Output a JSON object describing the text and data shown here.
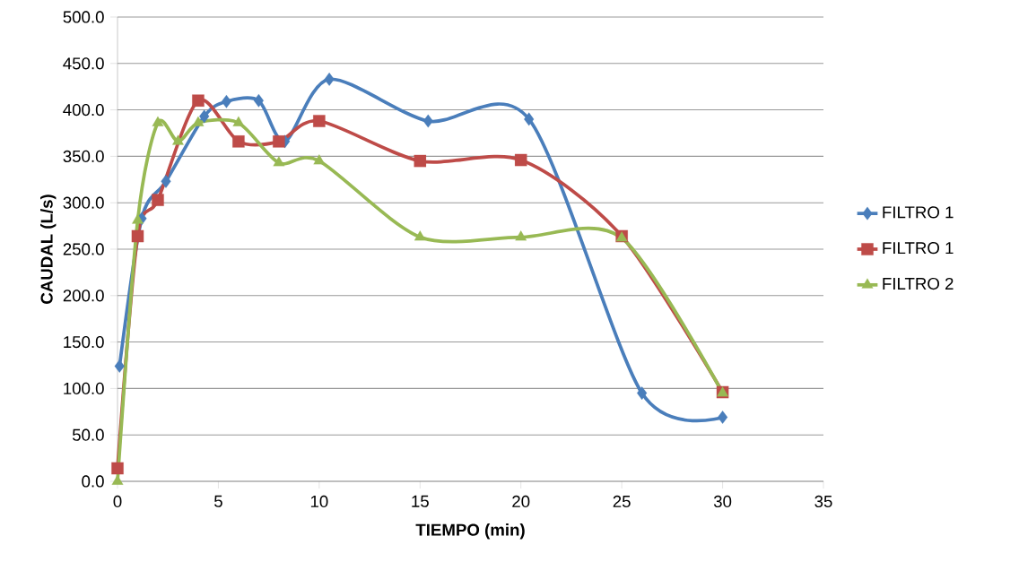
{
  "chart_data": {
    "type": "line",
    "xlabel": "TIEMPO (min)",
    "ylabel": "CAUDAL (L/s)",
    "xlim": [
      0,
      35
    ],
    "xticks": [
      0,
      5,
      10,
      15,
      20,
      25,
      30,
      35
    ],
    "ylim": [
      0,
      500
    ],
    "yticks": [
      {
        "value": 0,
        "label": "0.0"
      },
      {
        "value": 50,
        "label": "50.0"
      },
      {
        "value": 100,
        "label": "100.0"
      },
      {
        "value": 150,
        "label": "150.0"
      },
      {
        "value": 200,
        "label": "200.0"
      },
      {
        "value": 250,
        "label": "250.0"
      },
      {
        "value": 300,
        "label": "300.0"
      },
      {
        "value": 350,
        "label": "350.0"
      },
      {
        "value": 400,
        "label": "400.0"
      },
      {
        "value": 450,
        "label": "450.0"
      },
      {
        "value": 500,
        "label": "500.0"
      }
    ],
    "grid": "y",
    "legend": "right",
    "series": [
      {
        "name": "FILTRO 1",
        "color": "#4a7ebb",
        "marker": "diamond",
        "x": [
          0.1,
          1.2,
          2.4,
          4.3,
          5.4,
          7.0,
          8.3,
          10.5,
          15.4,
          20.4,
          26.0,
          30.0
        ],
        "values": [
          124,
          283,
          323,
          393,
          409,
          410,
          366,
          433,
          388,
          390,
          95,
          69
        ]
      },
      {
        "name": "FILTRO 1",
        "color": "#be4b48",
        "marker": "square",
        "x": [
          0,
          1,
          2,
          4,
          6,
          8,
          10,
          15,
          20,
          25,
          30
        ],
        "values": [
          14,
          264,
          303,
          410,
          366,
          366,
          388,
          345,
          346,
          264,
          96
        ]
      },
      {
        "name": "FILTRO 2",
        "color": "#98b954",
        "marker": "triangle",
        "x": [
          0,
          1,
          2,
          3,
          4,
          6,
          8,
          10,
          15,
          20,
          25,
          30
        ],
        "values": [
          0,
          281,
          386,
          366,
          386,
          386,
          343,
          345,
          263,
          263,
          262,
          95
        ]
      }
    ]
  }
}
